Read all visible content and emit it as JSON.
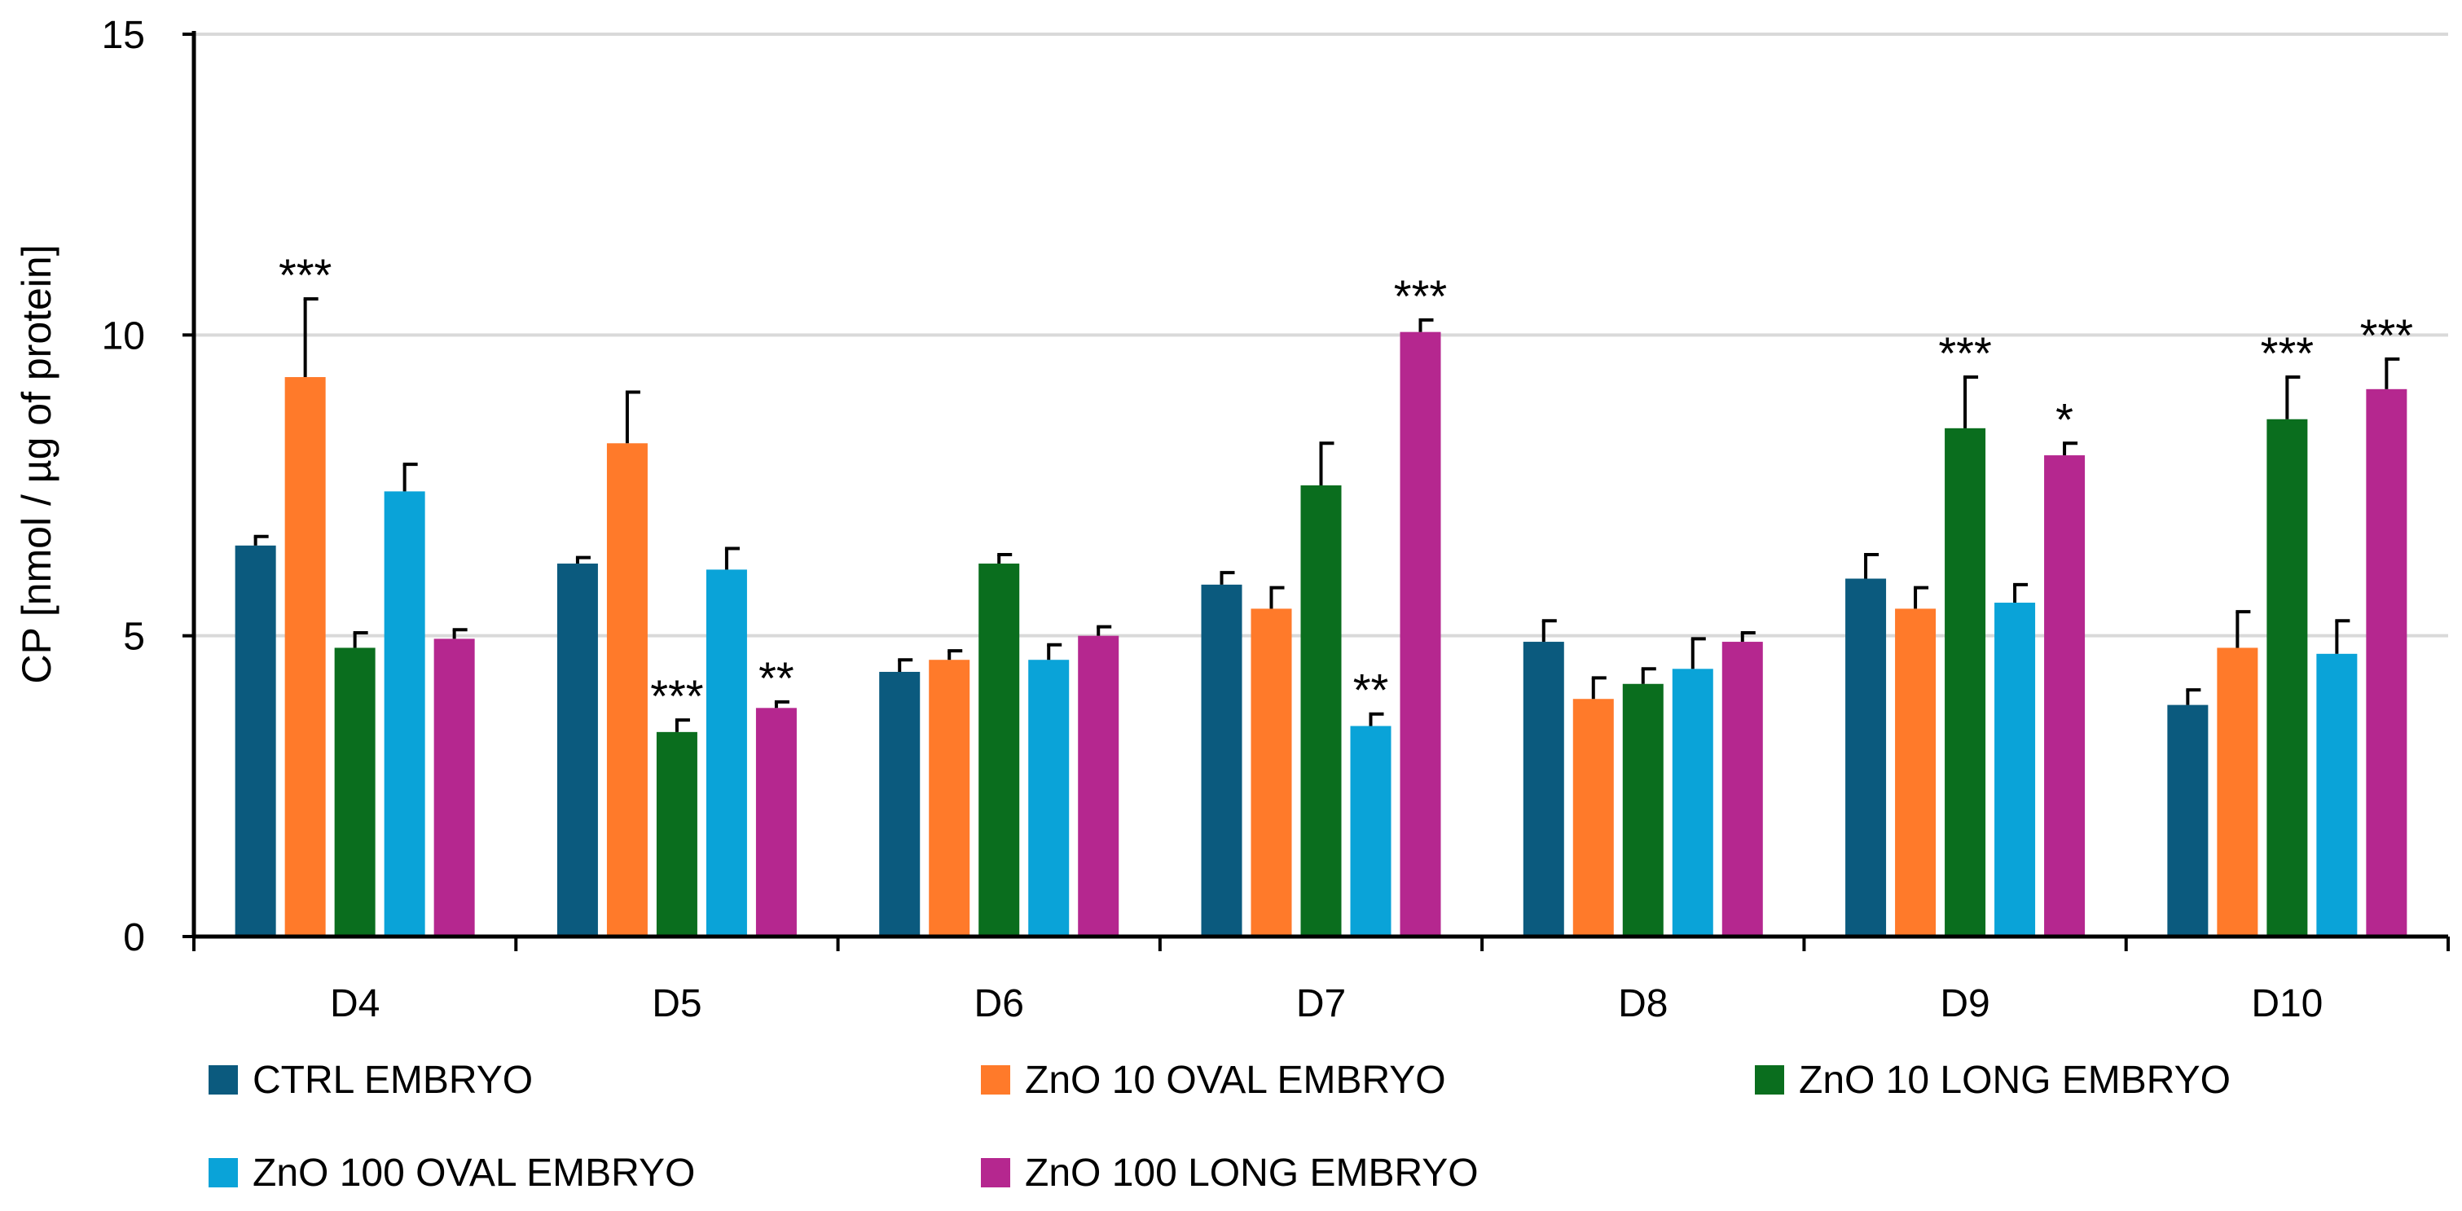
{
  "chart_data": {
    "type": "bar",
    "title": "",
    "xlabel": "",
    "ylabel": "CP [nmol / µg of protein]",
    "ylim": [
      0,
      15
    ],
    "yticks": [
      0,
      5,
      10,
      15
    ],
    "grid": true,
    "legend_position": "bottom",
    "categories": [
      "D4",
      "D5",
      "D6",
      "D7",
      "D8",
      "D9",
      "D10"
    ],
    "series": [
      {
        "name": "CTRL EMBRYO",
        "color": "#0b5a7e",
        "values": [
          6.5,
          6.2,
          4.4,
          5.85,
          4.9,
          5.95,
          3.85
        ],
        "errors": [
          0.15,
          0.1,
          0.2,
          0.2,
          0.35,
          0.4,
          0.25
        ],
        "significance": [
          "",
          "",
          "",
          "",
          "",
          "",
          ""
        ]
      },
      {
        "name": "ZnO 10 OVAL EMBRYO",
        "color": "#ff7a2a",
        "values": [
          9.3,
          8.2,
          4.6,
          5.45,
          3.95,
          5.45,
          4.8
        ],
        "errors": [
          1.3,
          0.85,
          0.15,
          0.35,
          0.35,
          0.35,
          0.6
        ],
        "significance": [
          "***",
          "",
          "",
          "",
          "",
          "",
          ""
        ]
      },
      {
        "name": "ZnO 10 LONG EMBRYO",
        "color": "#0a6e1e",
        "values": [
          4.8,
          3.4,
          6.2,
          7.5,
          4.2,
          8.45,
          8.6
        ],
        "errors": [
          0.25,
          0.2,
          0.15,
          0.7,
          0.25,
          0.85,
          0.7
        ],
        "significance": [
          "",
          "***",
          "",
          "",
          "",
          "***",
          "***"
        ]
      },
      {
        "name": "ZnO 100 OVAL EMBRYO",
        "color": "#0aa3d8",
        "values": [
          7.4,
          6.1,
          4.6,
          3.5,
          4.45,
          5.55,
          4.7
        ],
        "errors": [
          0.45,
          0.35,
          0.25,
          0.2,
          0.5,
          0.3,
          0.55
        ],
        "significance": [
          "",
          "",
          "",
          "**",
          "",
          "",
          ""
        ]
      },
      {
        "name": "ZnO 100 LONG EMBRYO",
        "color": "#b5278f",
        "values": [
          4.95,
          3.8,
          5.0,
          10.05,
          4.9,
          8.0,
          9.1
        ],
        "errors": [
          0.15,
          0.1,
          0.15,
          0.2,
          0.15,
          0.2,
          0.5
        ],
        "significance": [
          "",
          "**",
          "",
          "***",
          "",
          "*",
          "***"
        ]
      }
    ]
  }
}
